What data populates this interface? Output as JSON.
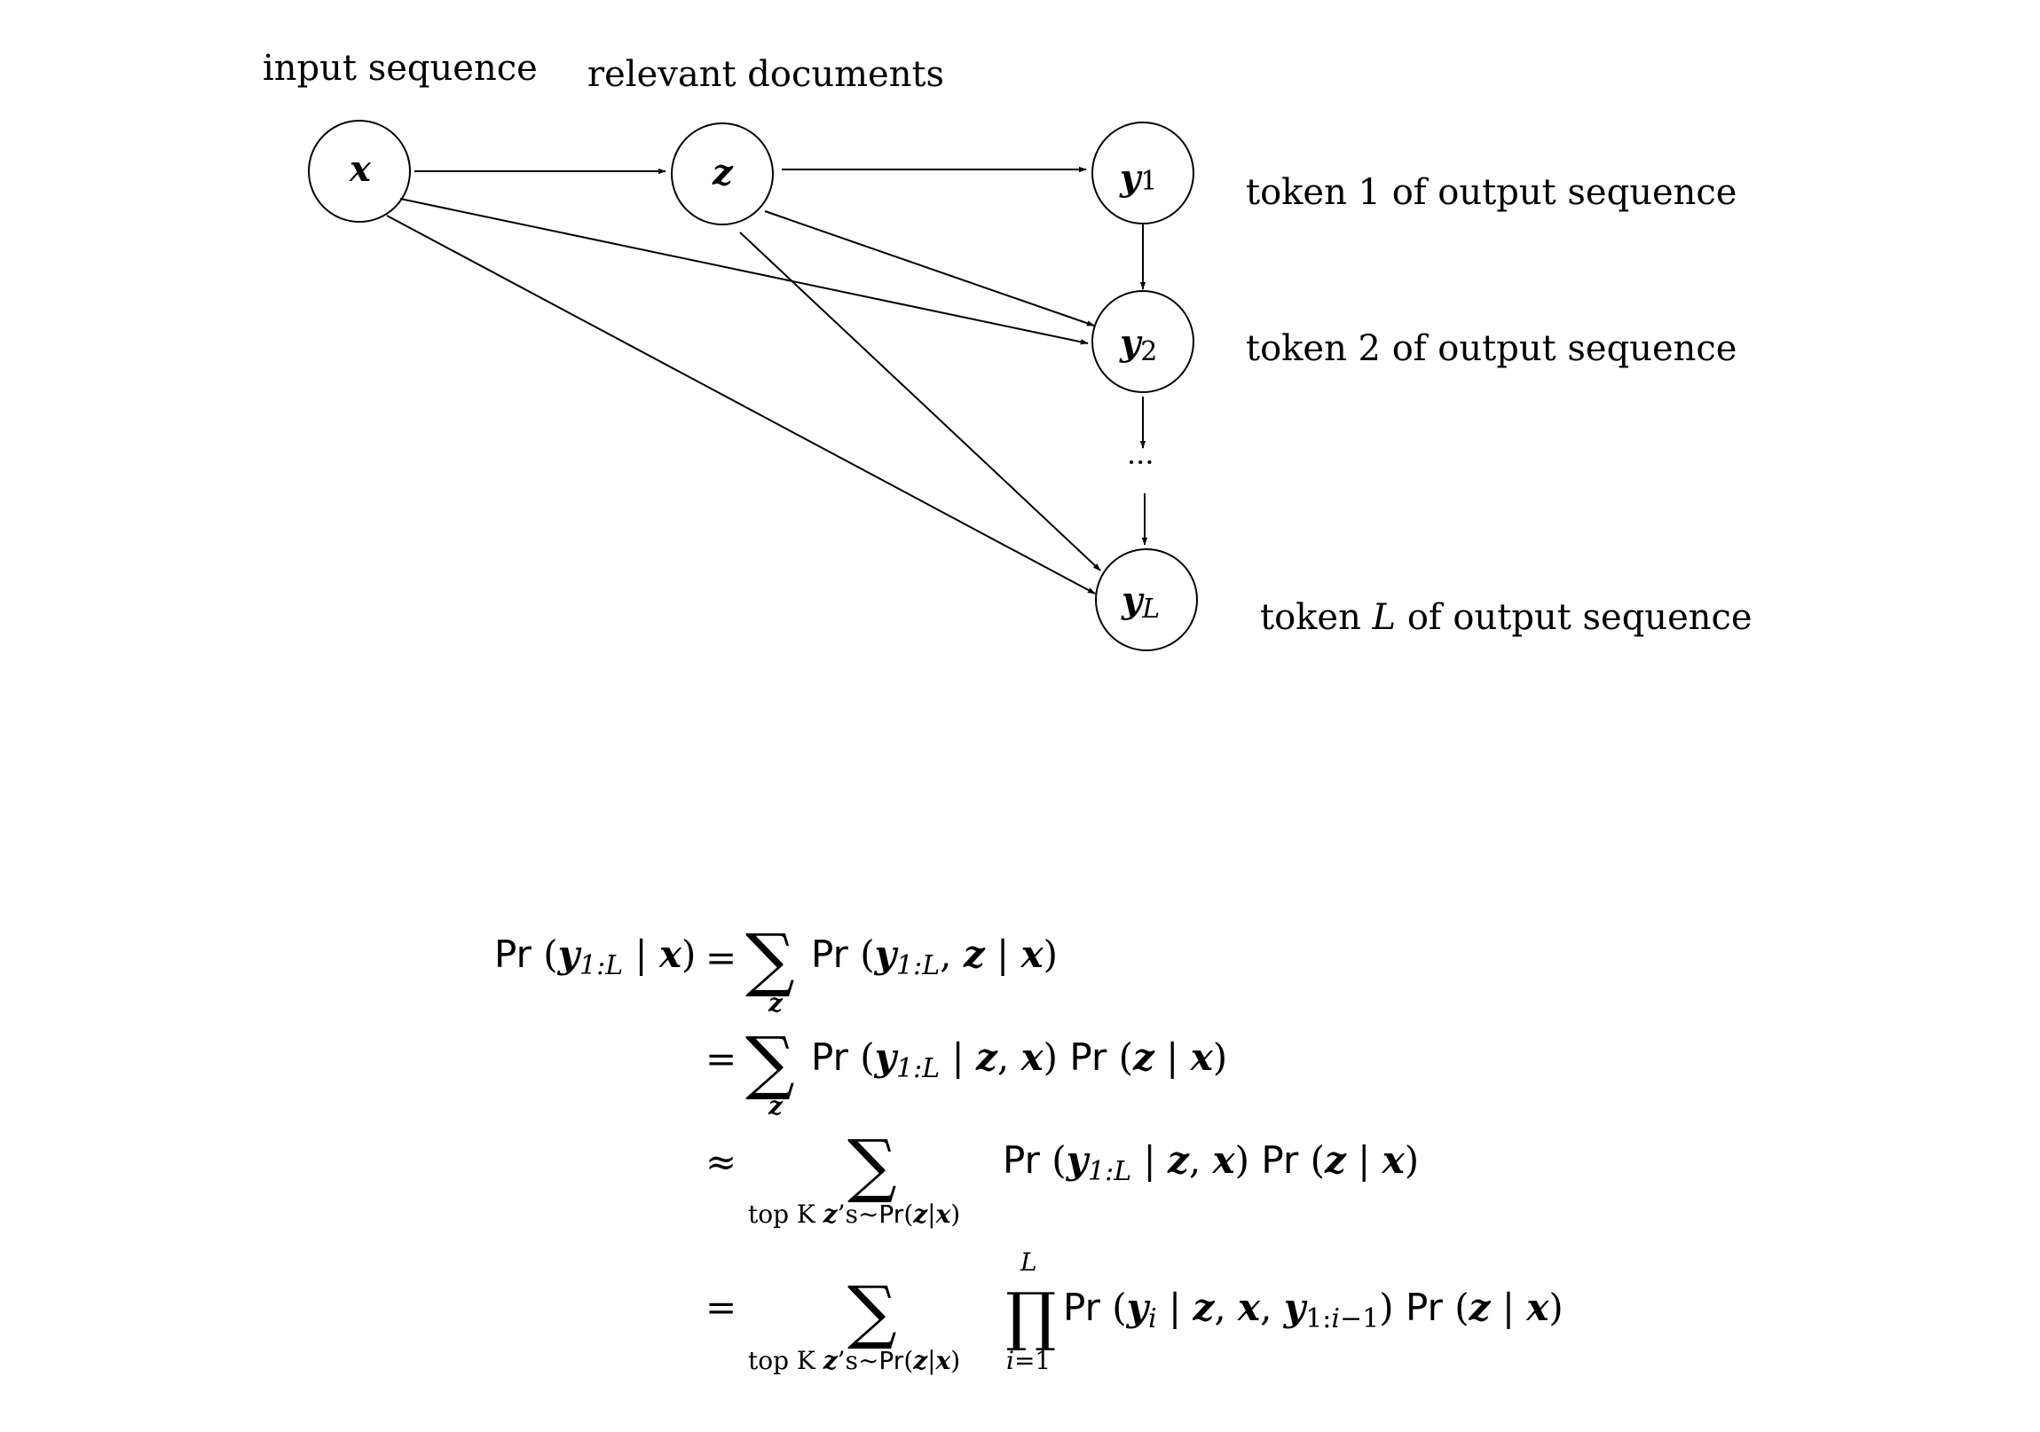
{
  "labels": {
    "input_sequence": "input sequence",
    "relevant_documents": "relevant documents",
    "token_1": "token 1 of output sequence",
    "token_2": "token 2 of output sequence",
    "token_L_prefix": "token ",
    "token_L_var": "L",
    "token_L_suffix": " of output sequence"
  },
  "nodes": {
    "x": "x",
    "z": "z",
    "y1_base": "y",
    "y1_sub": "1",
    "y2_base": "y",
    "y2_sub": "2",
    "yL_base": "y",
    "yL_sub": "L",
    "ellipsis": "···"
  },
  "equations": {
    "pr": "Pr",
    "lhs_y": "y",
    "lhs_sub": "1:L",
    "sum": "∑",
    "prod": "∏",
    "sum_sub_z": "z",
    "topk_text": "top K ",
    "topk_z": "z",
    "topk_s": "’s∼",
    "topk_pr": "Pr",
    "topk_args": "(z|x)",
    "prod_upper": "L",
    "prod_lower": "i=1",
    "rel_eq": "=",
    "rel_approx": "≈"
  }
}
